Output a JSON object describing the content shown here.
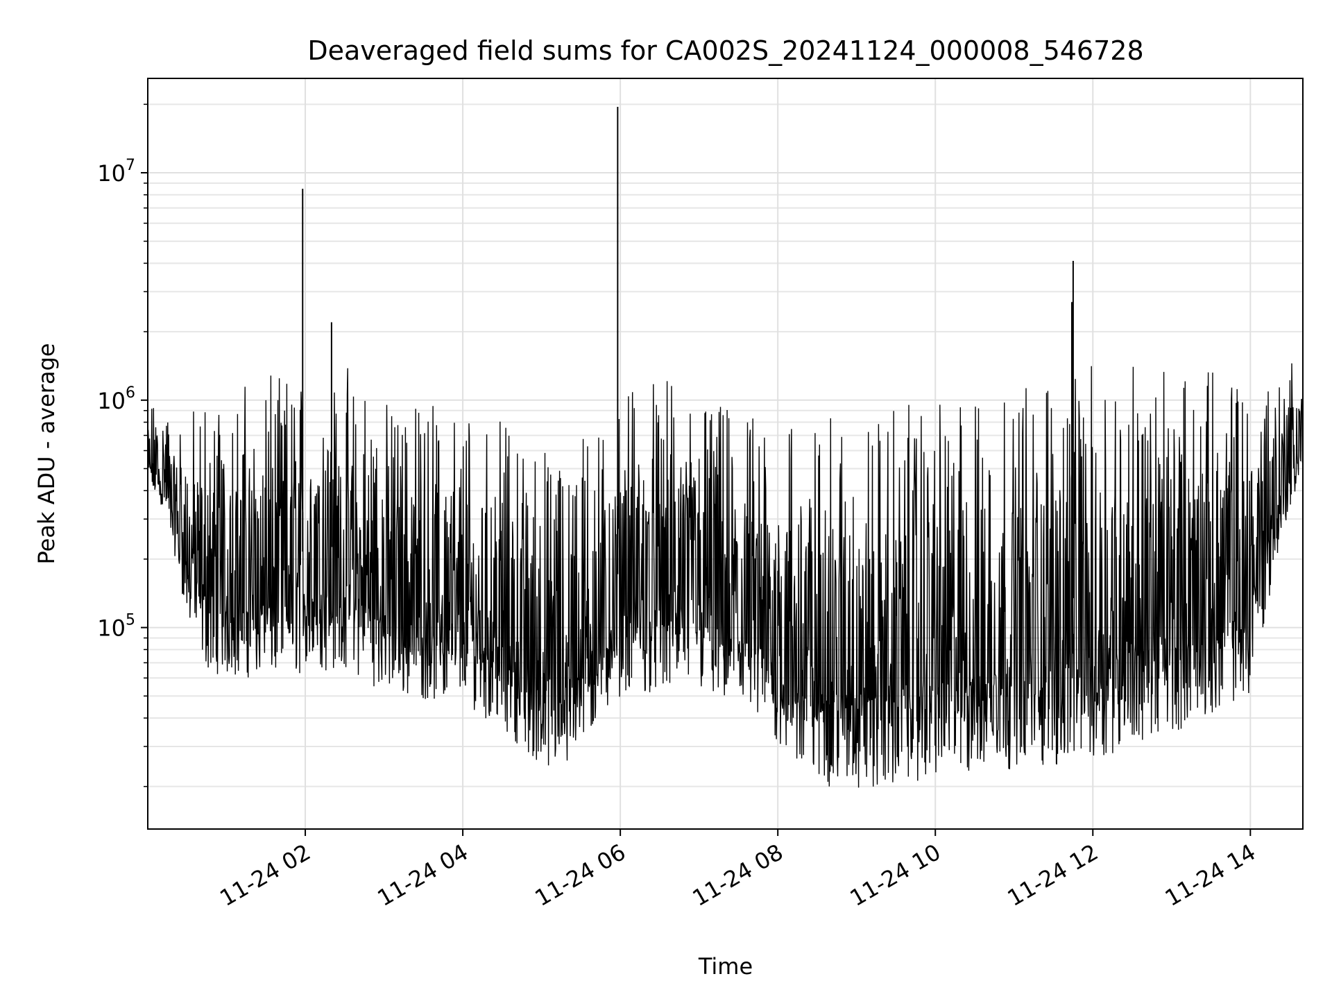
{
  "chart_data": {
    "type": "line",
    "title": "Deaveraged field sums for CA002S_20241124_000008_546728",
    "xlabel": "Time",
    "ylabel": "Peak ADU - average",
    "y_scale": "log",
    "ylim": [
      13000,
      26000000
    ],
    "xlim": [
      "2024-11-24 00:00",
      "2024-11-24 14:40"
    ],
    "grid": true,
    "x_ticks": [
      {
        "value": "2024-11-24 02:00",
        "label": "11-24 02"
      },
      {
        "value": "2024-11-24 04:00",
        "label": "11-24 04"
      },
      {
        "value": "2024-11-24 06:00",
        "label": "11-24 06"
      },
      {
        "value": "2024-11-24 08:00",
        "label": "11-24 08"
      },
      {
        "value": "2024-11-24 10:00",
        "label": "11-24 10"
      },
      {
        "value": "2024-11-24 12:00",
        "label": "11-24 12"
      },
      {
        "value": "2024-11-24 14:00",
        "label": "11-24 14"
      }
    ],
    "y_ticks": [
      {
        "value": 100000,
        "base": "10",
        "exp": "5"
      },
      {
        "value": 1000000,
        "base": "10",
        "exp": "6"
      },
      {
        "value": 10000000,
        "base": "10",
        "exp": "7"
      }
    ],
    "series": [
      {
        "color": "#000000",
        "envelope": [
          {
            "t": "2024-11-24 00:00",
            "low": 420000,
            "high": 950000
          },
          {
            "t": "2024-11-24 00:15",
            "low": 300000,
            "high": 900000
          },
          {
            "t": "2024-11-24 00:30",
            "low": 110000,
            "high": 800000
          },
          {
            "t": "2024-11-24 00:45",
            "low": 65000,
            "high": 1000000
          },
          {
            "t": "2024-11-24 01:00",
            "low": 60000,
            "high": 1000000
          },
          {
            "t": "2024-11-24 01:30",
            "low": 60000,
            "high": 1100000
          },
          {
            "t": "2024-11-24 02:00",
            "low": 62000,
            "high": 1200000
          },
          {
            "t": "2024-11-24 02:30",
            "low": 65000,
            "high": 1300000
          },
          {
            "t": "2024-11-24 03:00",
            "low": 52000,
            "high": 900000
          },
          {
            "t": "2024-11-24 03:30",
            "low": 48000,
            "high": 850000
          },
          {
            "t": "2024-11-24 04:00",
            "low": 46000,
            "high": 800000
          },
          {
            "t": "2024-11-24 04:30",
            "low": 36000,
            "high": 700000
          },
          {
            "t": "2024-11-24 05:00",
            "low": 24000,
            "high": 550000
          },
          {
            "t": "2024-11-24 05:15",
            "low": 21000,
            "high": 520000
          },
          {
            "t": "2024-11-24 05:30",
            "low": 30000,
            "high": 600000
          },
          {
            "t": "2024-11-24 06:00",
            "low": 50000,
            "high": 1000000
          },
          {
            "t": "2024-11-24 06:30",
            "low": 52000,
            "high": 1100000
          },
          {
            "t": "2024-11-24 07:00",
            "low": 52000,
            "high": 900000
          },
          {
            "t": "2024-11-24 07:30",
            "low": 42000,
            "high": 800000
          },
          {
            "t": "2024-11-24 08:00",
            "low": 30000,
            "high": 750000
          },
          {
            "t": "2024-11-24 08:30",
            "low": 20000,
            "high": 700000
          },
          {
            "t": "2024-11-24 09:00",
            "low": 19000,
            "high": 700000
          },
          {
            "t": "2024-11-24 09:30",
            "low": 20000,
            "high": 800000
          },
          {
            "t": "2024-11-24 10:00",
            "low": 22000,
            "high": 800000
          },
          {
            "t": "2024-11-24 10:30",
            "low": 22000,
            "high": 850000
          },
          {
            "t": "2024-11-24 11:00",
            "low": 24000,
            "high": 1000000
          },
          {
            "t": "2024-11-24 11:30",
            "low": 24000,
            "high": 1100000
          },
          {
            "t": "2024-11-24 12:00",
            "low": 26000,
            "high": 1200000
          },
          {
            "t": "2024-11-24 12:30",
            "low": 30000,
            "high": 1300000
          },
          {
            "t": "2024-11-24 13:00",
            "low": 34000,
            "high": 1100000
          },
          {
            "t": "2024-11-24 13:30",
            "low": 42000,
            "high": 1200000
          },
          {
            "t": "2024-11-24 14:00",
            "low": 50000,
            "high": 1300000
          },
          {
            "t": "2024-11-24 14:20",
            "low": 200000,
            "high": 1400000
          },
          {
            "t": "2024-11-24 14:40",
            "low": 500000,
            "high": 1500000
          }
        ],
        "spikes": [
          {
            "t": "2024-11-24 01:58",
            "value": 8500000
          },
          {
            "t": "2024-11-24 02:20",
            "value": 2200000
          },
          {
            "t": "2024-11-24 05:58",
            "value": 19500000
          },
          {
            "t": "2024-11-24 11:45",
            "value": 4100000
          },
          {
            "t": "2024-11-24 11:44",
            "value": 2700000
          }
        ]
      }
    ]
  }
}
